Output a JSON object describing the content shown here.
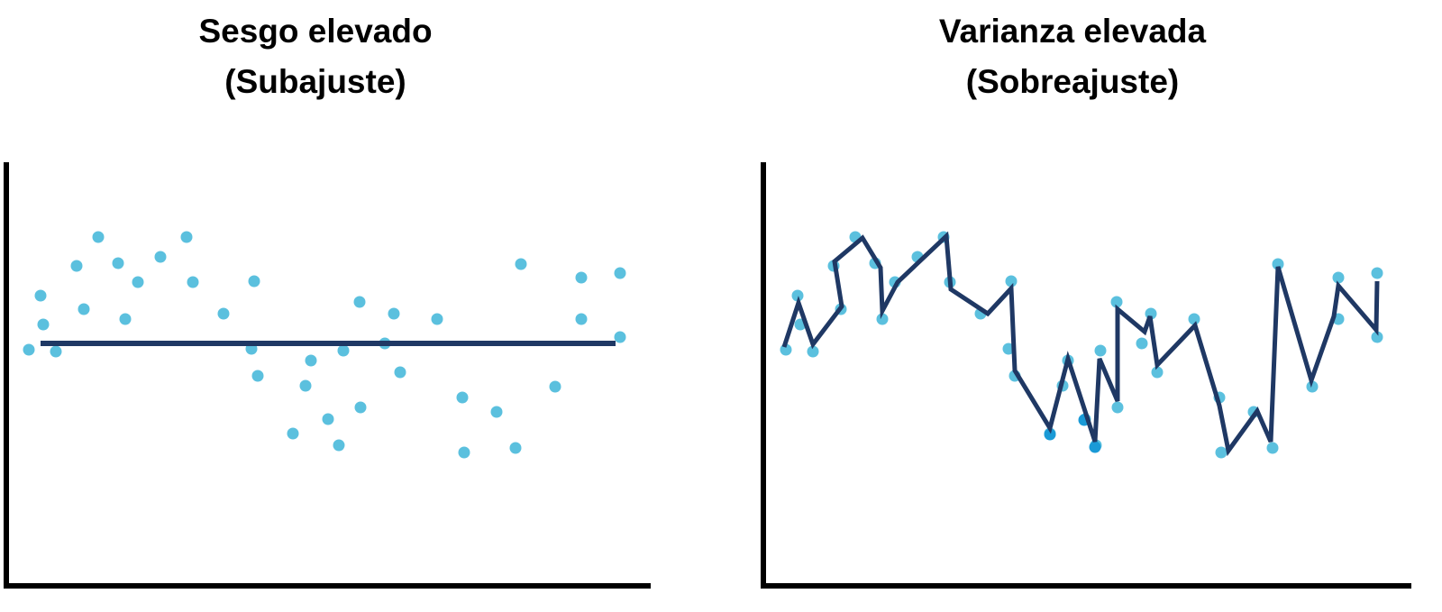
{
  "panels": [
    {
      "title": [
        "Sesgo elevado",
        "(Subajuste)"
      ]
    },
    {
      "title": [
        "Varianza elevada",
        "(Sobreajuste)"
      ]
    }
  ]
}
